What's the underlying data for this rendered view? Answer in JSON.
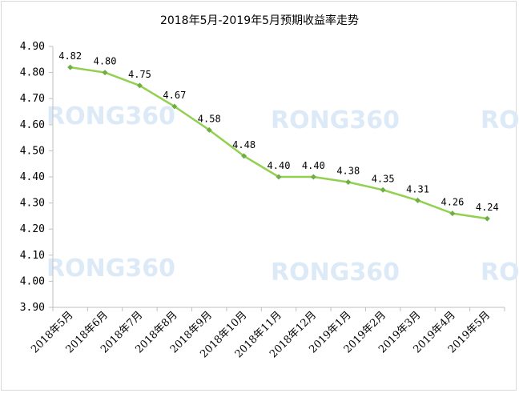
{
  "watermark": "RONG360",
  "chart_data": {
    "type": "line",
    "title": "2018年5月-2019年5月预期收益率走势",
    "xlabel": "",
    "ylabel": "",
    "categories": [
      "2018年5月",
      "2018年6月",
      "2018年7月",
      "2018年8月",
      "2018年9月",
      "2018年10月",
      "2018年11月",
      "2018年12月",
      "2019年1月",
      "2019年2月",
      "2019年3月",
      "2019年4月",
      "2019年5月"
    ],
    "series": [
      {
        "values": [
          4.82,
          4.8,
          4.75,
          4.67,
          4.58,
          4.48,
          4.4,
          4.4,
          4.38,
          4.35,
          4.31,
          4.26,
          4.24
        ]
      }
    ],
    "data_labels": [
      "4.82",
      "4.80",
      "4.75",
      "4.67",
      "4.58",
      "4.48",
      "4.40",
      "4.40",
      "4.38",
      "4.35",
      "4.31",
      "4.26",
      "4.24"
    ],
    "y_ticks": [
      "3.90",
      "4.00",
      "4.10",
      "4.20",
      "4.30",
      "4.40",
      "4.50",
      "4.60",
      "4.70",
      "4.80",
      "4.90"
    ],
    "ylim": [
      3.9,
      4.9
    ],
    "grid": false,
    "legend": "none",
    "colors": {
      "line": "#92d050",
      "marker": "#70ad47",
      "axis": "#bfbfbf"
    }
  }
}
